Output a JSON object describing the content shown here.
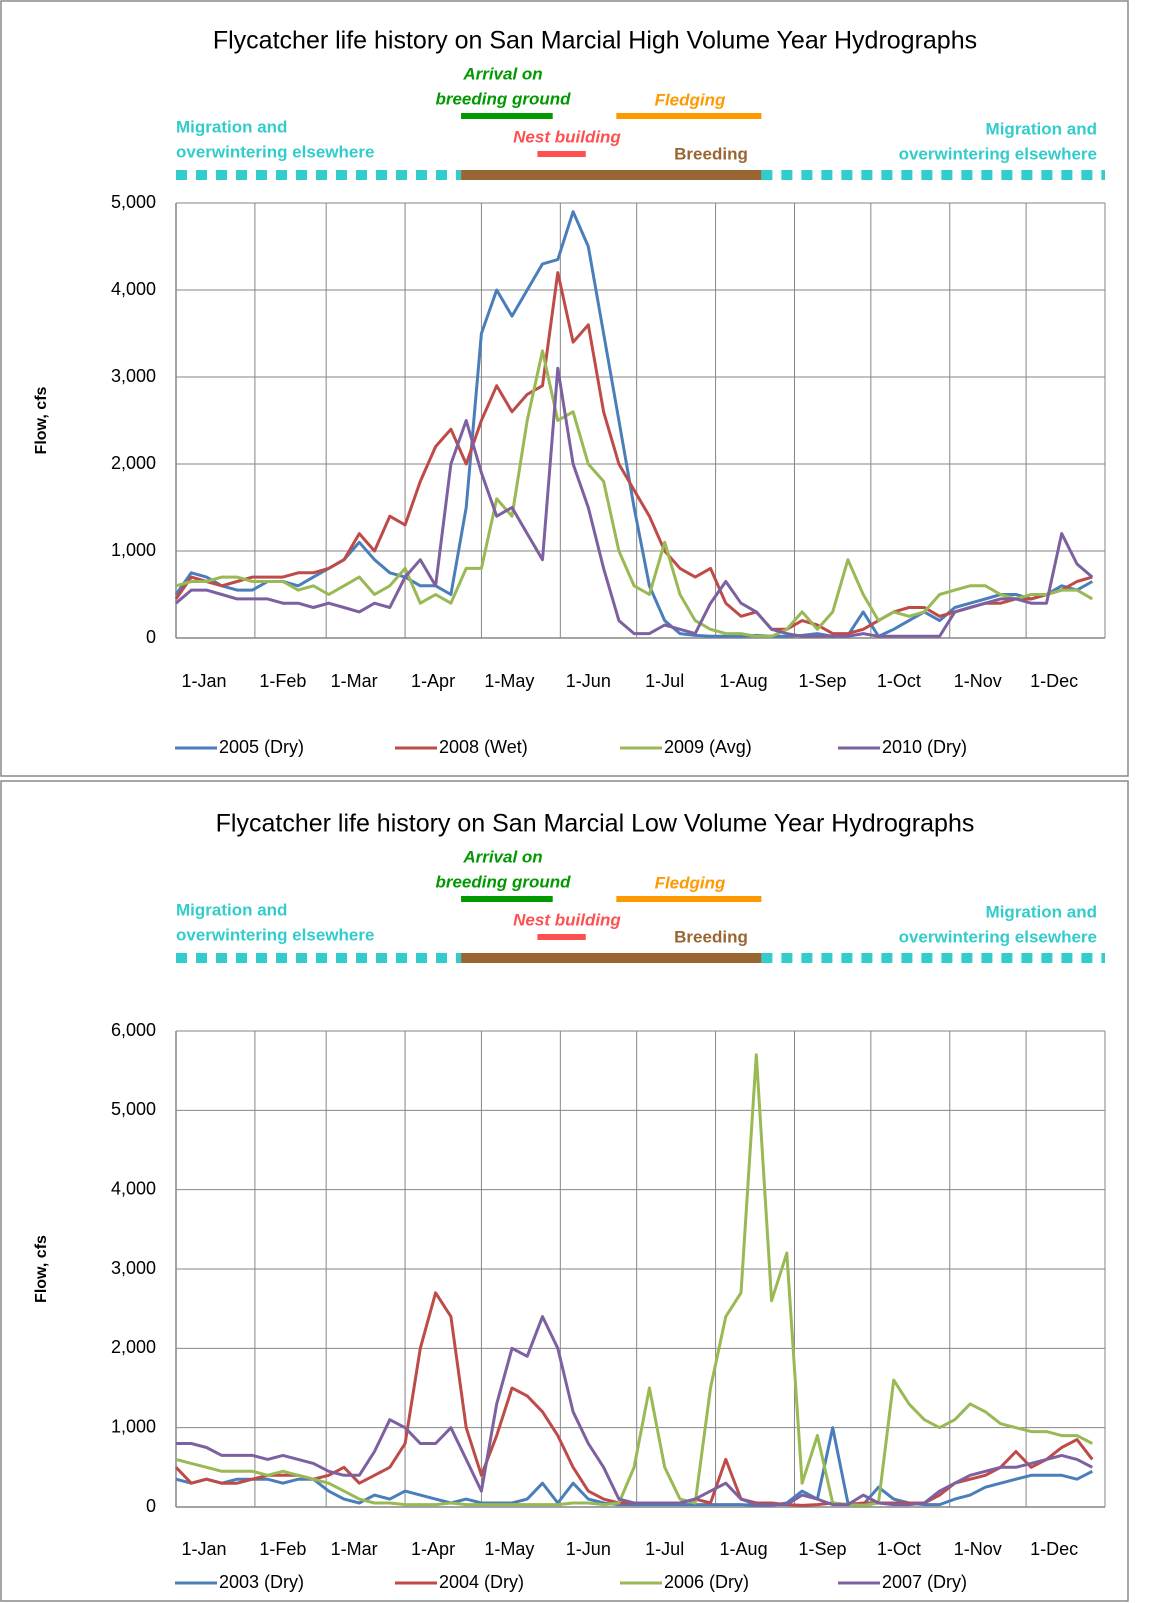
{
  "chart_data": [
    {
      "type": "line",
      "title": "Flycatcher life history on San Marcial High Volume Year Hydrographs",
      "y_label": "Flow, cfs",
      "xlim": [
        1,
        366
      ],
      "xticks": [
        {
          "value": 1,
          "label": "1-Jan"
        },
        {
          "value": 32,
          "label": "1-Feb"
        },
        {
          "value": 60,
          "label": "1-Mar"
        },
        {
          "value": 91,
          "label": "1-Apr"
        },
        {
          "value": 121,
          "label": "1-May"
        },
        {
          "value": 152,
          "label": "1-Jun"
        },
        {
          "value": 182,
          "label": "1-Jul"
        },
        {
          "value": 213,
          "label": "1-Aug"
        },
        {
          "value": 244,
          "label": "1-Sep"
        },
        {
          "value": 274,
          "label": "1-Oct"
        },
        {
          "value": 305,
          "label": "1-Nov"
        },
        {
          "value": 335,
          "label": "1-Dec"
        }
      ],
      "ylim": [
        0,
        5000
      ],
      "yticks": [
        0,
        {
          "value": 1000,
          "label": "1,000"
        },
        {
          "value": 2000,
          "label": "2,000"
        },
        {
          "value": 3000,
          "label": "3,000"
        },
        {
          "value": 4000,
          "label": "4,000"
        },
        {
          "value": 5000,
          "label": "5,000"
        }
      ],
      "grid": true,
      "legend": "bottom",
      "periods": [
        {
          "label": [
            "Migration and",
            "overwintering elsewhere"
          ],
          "start": 1,
          "end": 113,
          "color": "#33cccc",
          "style": "dotted"
        },
        {
          "label": [
            "Arrival on",
            "breeding ground"
          ],
          "start": 113,
          "end": 149,
          "color": "#009900",
          "style": "solid"
        },
        {
          "label": [
            "Nest building"
          ],
          "start": 143,
          "end": 162,
          "color": "#ff5050",
          "style": "solid"
        },
        {
          "label": [
            "Fledging"
          ],
          "start": 174,
          "end": 231,
          "color": "#ff9900",
          "style": "solid"
        },
        {
          "label": [
            "Breeding"
          ],
          "start": 113,
          "end": 231,
          "color": "#996633",
          "style": "solid"
        },
        {
          "label": [
            "Migration and",
            "overwintering elsewhere"
          ],
          "start": 231,
          "end": 366,
          "color": "#33cccc",
          "style": "dotted"
        }
      ],
      "x": [
        1,
        7,
        13,
        19,
        25,
        31,
        37,
        43,
        49,
        55,
        61,
        67,
        73,
        79,
        85,
        91,
        97,
        103,
        109,
        115,
        121,
        127,
        133,
        139,
        145,
        151,
        157,
        163,
        169,
        175,
        181,
        187,
        193,
        199,
        205,
        211,
        217,
        223,
        229,
        235,
        241,
        247,
        253,
        259,
        265,
        271,
        277,
        283,
        289,
        295,
        301,
        307,
        313,
        319,
        325,
        331,
        337,
        343,
        349,
        355,
        361
      ],
      "series": [
        {
          "name": "2005 (Dry)",
          "color": "#4a7ebb",
          "values": [
            500,
            750,
            700,
            600,
            550,
            550,
            650,
            650,
            600,
            700,
            800,
            900,
            1100,
            900,
            750,
            700,
            600,
            600,
            500,
            1500,
            3500,
            4000,
            3700,
            4000,
            4300,
            4350,
            4900,
            4500,
            3500,
            2500,
            1500,
            600,
            200,
            50,
            30,
            20,
            20,
            20,
            30,
            20,
            20,
            30,
            50,
            20,
            30,
            300,
            20,
            100,
            200,
            300,
            200,
            350,
            400,
            450,
            500,
            500,
            450,
            500,
            600,
            550,
            650
          ]
        },
        {
          "name": "2008 (Wet)",
          "color": "#be4b48",
          "values": [
            450,
            700,
            650,
            600,
            650,
            700,
            700,
            700,
            750,
            750,
            800,
            900,
            1200,
            1000,
            1400,
            1300,
            1800,
            2200,
            2400,
            2000,
            2500,
            2900,
            2600,
            2800,
            2900,
            4200,
            3400,
            3600,
            2600,
            2000,
            1700,
            1400,
            1000,
            800,
            700,
            800,
            400,
            250,
            300,
            100,
            100,
            200,
            150,
            50,
            50,
            100,
            200,
            300,
            350,
            350,
            250,
            300,
            350,
            400,
            400,
            450,
            450,
            500,
            550,
            650,
            700
          ]
        },
        {
          "name": "2009 (Avg)",
          "color": "#98b954",
          "values": [
            600,
            650,
            650,
            700,
            700,
            650,
            650,
            650,
            550,
            600,
            500,
            600,
            700,
            500,
            600,
            800,
            400,
            500,
            400,
            800,
            800,
            1600,
            1400,
            2500,
            3300,
            2500,
            2600,
            2000,
            1800,
            1000,
            600,
            500,
            1100,
            500,
            200,
            100,
            50,
            50,
            20,
            20,
            100,
            300,
            100,
            300,
            900,
            500,
            200,
            300,
            250,
            300,
            500,
            550,
            600,
            600,
            500,
            450,
            500,
            500,
            550,
            550,
            450
          ]
        },
        {
          "name": "2010 (Dry)",
          "color": "#7d60a0",
          "values": [
            400,
            550,
            550,
            500,
            450,
            450,
            450,
            400,
            400,
            350,
            400,
            350,
            300,
            400,
            350,
            700,
            900,
            600,
            2000,
            2500,
            1900,
            1400,
            1500,
            1200,
            900,
            3100,
            2000,
            1500,
            800,
            200,
            50,
            50,
            150,
            100,
            50,
            400,
            650,
            400,
            300,
            100,
            50,
            20,
            20,
            20,
            20,
            50,
            20,
            20,
            20,
            20,
            20,
            300,
            350,
            400,
            450,
            450,
            400,
            400,
            1200,
            850,
            700
          ]
        }
      ]
    },
    {
      "type": "line",
      "title": "Flycatcher life history on San Marcial Low Volume Year Hydrographs",
      "y_label": "Flow, cfs",
      "xlim": [
        1,
        366
      ],
      "xticks": [
        {
          "value": 1,
          "label": "1-Jan"
        },
        {
          "value": 32,
          "label": "1-Feb"
        },
        {
          "value": 60,
          "label": "1-Mar"
        },
        {
          "value": 91,
          "label": "1-Apr"
        },
        {
          "value": 121,
          "label": "1-May"
        },
        {
          "value": 152,
          "label": "1-Jun"
        },
        {
          "value": 182,
          "label": "1-Jul"
        },
        {
          "value": 213,
          "label": "1-Aug"
        },
        {
          "value": 244,
          "label": "1-Sep"
        },
        {
          "value": 274,
          "label": "1-Oct"
        },
        {
          "value": 305,
          "label": "1-Nov"
        },
        {
          "value": 335,
          "label": "1-Dec"
        }
      ],
      "ylim": [
        0,
        6000
      ],
      "yticks": [
        0,
        {
          "value": 1000,
          "label": "1,000"
        },
        {
          "value": 2000,
          "label": "2,000"
        },
        {
          "value": 3000,
          "label": "3,000"
        },
        {
          "value": 4000,
          "label": "4,000"
        },
        {
          "value": 5000,
          "label": "5,000"
        },
        {
          "value": 6000,
          "label": "6,000"
        }
      ],
      "grid": true,
      "legend": "bottom",
      "periods": [
        {
          "label": [
            "Migration and",
            "overwintering elsewhere"
          ],
          "start": 1,
          "end": 113,
          "color": "#33cccc",
          "style": "dotted"
        },
        {
          "label": [
            "Arrival on",
            "breeding ground"
          ],
          "start": 113,
          "end": 149,
          "color": "#009900",
          "style": "solid"
        },
        {
          "label": [
            "Nest building"
          ],
          "start": 143,
          "end": 162,
          "color": "#ff5050",
          "style": "solid"
        },
        {
          "label": [
            "Fledging"
          ],
          "start": 174,
          "end": 231,
          "color": "#ff9900",
          "style": "solid"
        },
        {
          "label": [
            "Breeding"
          ],
          "start": 113,
          "end": 231,
          "color": "#996633",
          "style": "solid"
        },
        {
          "label": [
            "Migration and",
            "overwintering elsewhere"
          ],
          "start": 231,
          "end": 366,
          "color": "#33cccc",
          "style": "dotted"
        }
      ],
      "x": [
        1,
        7,
        13,
        19,
        25,
        31,
        37,
        43,
        49,
        55,
        61,
        67,
        73,
        79,
        85,
        91,
        97,
        103,
        109,
        115,
        121,
        127,
        133,
        139,
        145,
        151,
        157,
        163,
        169,
        175,
        181,
        187,
        193,
        199,
        205,
        211,
        217,
        223,
        229,
        235,
        241,
        247,
        253,
        259,
        265,
        271,
        277,
        283,
        289,
        295,
        301,
        307,
        313,
        319,
        325,
        331,
        337,
        343,
        349,
        355,
        361
      ],
      "series": [
        {
          "name": "2003 (Dry)",
          "color": "#4a7ebb",
          "values": [
            350,
            300,
            350,
            300,
            350,
            350,
            350,
            300,
            350,
            350,
            200,
            100,
            50,
            150,
            100,
            200,
            150,
            100,
            50,
            100,
            50,
            50,
            50,
            100,
            300,
            50,
            300,
            100,
            50,
            30,
            30,
            30,
            30,
            30,
            30,
            30,
            30,
            30,
            20,
            20,
            50,
            200,
            100,
            1000,
            50,
            30,
            250,
            100,
            50,
            30,
            30,
            100,
            150,
            250,
            300,
            350,
            400,
            400,
            400,
            350,
            450
          ]
        },
        {
          "name": "2004 (Dry)",
          "color": "#be4b48",
          "values": [
            500,
            300,
            350,
            300,
            300,
            350,
            400,
            400,
            400,
            350,
            400,
            500,
            300,
            400,
            500,
            800,
            2000,
            2700,
            2400,
            1000,
            400,
            900,
            1500,
            1400,
            1200,
            900,
            500,
            200,
            100,
            50,
            50,
            50,
            50,
            50,
            100,
            50,
            600,
            100,
            50,
            50,
            30,
            20,
            30,
            50,
            30,
            50,
            50,
            50,
            50,
            50,
            150,
            300,
            350,
            400,
            500,
            700,
            500,
            600,
            750,
            850,
            600
          ]
        },
        {
          "name": "2006 (Dry)",
          "color": "#98b954",
          "values": [
            600,
            550,
            500,
            450,
            450,
            450,
            400,
            450,
            400,
            350,
            300,
            200,
            100,
            50,
            50,
            30,
            30,
            30,
            50,
            30,
            30,
            30,
            30,
            30,
            30,
            30,
            50,
            50,
            30,
            50,
            500,
            1500,
            500,
            100,
            50,
            1500,
            2400,
            2700,
            5700,
            2600,
            3200,
            300,
            900,
            50,
            30,
            20,
            50,
            1600,
            1300,
            1100,
            1000,
            1100,
            1300,
            1200,
            1050,
            1000,
            950,
            950,
            900,
            900,
            800
          ]
        },
        {
          "name": "2007 (Dry)",
          "color": "#7d60a0",
          "values": [
            800,
            800,
            750,
            650,
            650,
            650,
            600,
            650,
            600,
            550,
            450,
            400,
            400,
            700,
            1100,
            1000,
            800,
            800,
            1000,
            600,
            200,
            1300,
            2000,
            1900,
            2400,
            2000,
            1200,
            800,
            500,
            100,
            50,
            50,
            50,
            50,
            100,
            200,
            300,
            100,
            30,
            30,
            30,
            150,
            100,
            30,
            30,
            150,
            50,
            30,
            30,
            50,
            200,
            300,
            400,
            450,
            500,
            500,
            550,
            600,
            650,
            600,
            500
          ]
        }
      ]
    }
  ]
}
